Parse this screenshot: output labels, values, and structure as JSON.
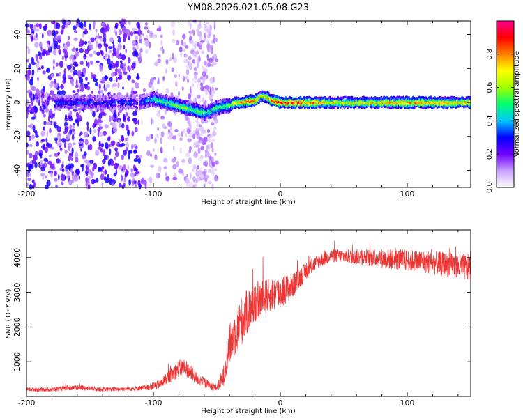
{
  "figure_title": "YM08.2026.021.05.08.G23",
  "chart_data": [
    {
      "type": "heatmap",
      "name": "spectrogram",
      "title": "YM08.2026.021.05.08.G23",
      "xlabel": "Height of straight line (km)",
      "ylabel": "Frequency (Hz)",
      "xlim": [
        -200,
        150
      ],
      "ylim": [
        -50,
        48
      ],
      "xticks": [
        -200,
        -100,
        0,
        100
      ],
      "xtick_labels": [
        "-200",
        "-100",
        "0",
        "100"
      ],
      "yticks": [
        -40,
        -20,
        0,
        20,
        40
      ],
      "ytick_labels": [
        "-40",
        "-20",
        "0",
        "20",
        "40"
      ],
      "colorbar": {
        "label": "Normalized spectral amplitude",
        "range": [
          0,
          1
        ],
        "ticks": [
          0.0,
          0.2,
          0.4,
          0.6,
          0.8
        ],
        "tick_labels": [
          "0.0",
          "0.2",
          "0.4",
          "0.6",
          "0.8"
        ],
        "colors": [
          "#ffffff",
          "#c8a0ff",
          "#7000ff",
          "#0000ff",
          "#00c8ff",
          "#00ff70",
          "#a0ff00",
          "#ffff00",
          "#ff8000",
          "#ff0000",
          "#ff0090"
        ]
      },
      "signal_ridge": {
        "x": [
          -175,
          -150,
          -125,
          -110,
          -100,
          -90,
          -80,
          -70,
          -60,
          -55,
          -50,
          -40,
          -35,
          -30,
          -25,
          -20,
          -15,
          -10,
          -5,
          0,
          20,
          50,
          100,
          150
        ],
        "freq_hz": [
          0,
          0,
          0,
          0,
          2,
          0,
          -2,
          -4,
          -6,
          -5,
          -3,
          -2,
          0,
          0,
          1,
          1,
          4,
          3,
          1,
          0,
          0,
          0,
          0,
          0
        ],
        "amplitude": [
          0.3,
          0.3,
          0.3,
          0.3,
          0.45,
          0.5,
          0.55,
          0.55,
          0.5,
          0.5,
          0.5,
          0.55,
          0.75,
          0.85,
          0.85,
          0.85,
          0.7,
          0.75,
          0.85,
          0.95,
          0.85,
          0.7,
          0.8,
          0.75
        ]
      },
      "noise_region_x": [
        -200,
        -50
      ]
    },
    {
      "type": "line",
      "name": "snr",
      "xlabel": "Height of straight line (km)",
      "ylabel": "SNR (10 * v/v)",
      "xlim": [
        -200,
        150
      ],
      "ylim": [
        0,
        4800
      ],
      "xticks": [
        -200,
        -100,
        0,
        100
      ],
      "xtick_labels": [
        "-200",
        "-100",
        "0",
        "100"
      ],
      "yticks": [
        1000,
        2000,
        3000,
        4000
      ],
      "ytick_labels": [
        "1000",
        "2000",
        "3000",
        "4000"
      ],
      "color": "#ee3333",
      "series": [
        {
          "name": "SNR",
          "x": [
            -200,
            -180,
            -160,
            -140,
            -120,
            -105,
            -95,
            -90,
            -85,
            -80,
            -75,
            -70,
            -65,
            -60,
            -55,
            -50,
            -45,
            -40,
            -35,
            -30,
            -25,
            -20,
            -15,
            -10,
            -5,
            0,
            10,
            20,
            30,
            40,
            50,
            70,
            90,
            110,
            130,
            150
          ],
          "y": [
            200,
            200,
            260,
            200,
            220,
            250,
            350,
            500,
            650,
            800,
            850,
            650,
            500,
            400,
            300,
            250,
            550,
            1500,
            1900,
            2200,
            2500,
            2700,
            2800,
            2900,
            2950,
            3000,
            3200,
            3600,
            3900,
            4050,
            4050,
            4000,
            3950,
            3900,
            3800,
            3700
          ],
          "noise_amp": [
            60,
            60,
            80,
            60,
            60,
            80,
            140,
            180,
            220,
            250,
            260,
            220,
            180,
            150,
            120,
            100,
            300,
            600,
            700,
            700,
            650,
            600,
            550,
            500,
            500,
            500,
            350,
            250,
            200,
            200,
            200,
            250,
            300,
            330,
            360,
            400
          ]
        }
      ]
    }
  ]
}
